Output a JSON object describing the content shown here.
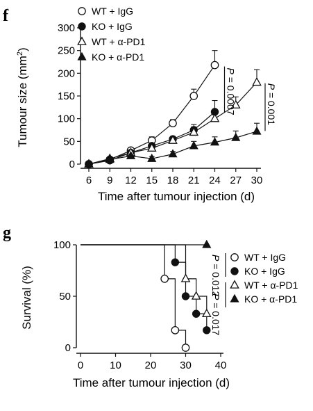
{
  "panels": {
    "f": "f",
    "g": "g"
  },
  "chart_data": [
    {
      "type": "line",
      "panel": "f",
      "xlabel": "Time after tumour injection (d)",
      "ylabel_main": "Tumour size (mm",
      "ylabel_sup": "2",
      "ylabel_end": ")",
      "x": [
        6,
        9,
        12,
        15,
        18,
        21,
        24,
        27,
        30
      ],
      "xlim": [
        6,
        30
      ],
      "ylim": [
        0,
        300
      ],
      "yticks": [
        0,
        50,
        100,
        150,
        200,
        250,
        300
      ],
      "legend_position": "top-left",
      "series": [
        {
          "name": "WT + IgG",
          "marker": "open-circle",
          "x": [
            6,
            9,
            12,
            15,
            18,
            21,
            24
          ],
          "y": [
            0,
            10,
            30,
            52,
            90,
            150,
            218
          ],
          "err": [
            0,
            3,
            5,
            8,
            8,
            15,
            32
          ]
        },
        {
          "name": "KO + IgG",
          "marker": "filled-circle",
          "x": [
            6,
            9,
            12,
            15,
            18,
            21,
            24
          ],
          "y": [
            0,
            8,
            25,
            40,
            55,
            75,
            115
          ],
          "err": [
            0,
            3,
            5,
            6,
            6,
            12,
            25
          ]
        },
        {
          "name": "WT + α-PD1",
          "marker": "open-triangle",
          "x": [
            6,
            9,
            12,
            15,
            18,
            21,
            24,
            27,
            30
          ],
          "y": [
            0,
            12,
            25,
            35,
            52,
            70,
            100,
            130,
            180
          ],
          "err": [
            0,
            3,
            5,
            8,
            6,
            12,
            20,
            18,
            28
          ]
        },
        {
          "name": "KO + α-PD1",
          "marker": "filled-triangle",
          "x": [
            6,
            9,
            12,
            15,
            18,
            21,
            24,
            27,
            30
          ],
          "y": [
            0,
            10,
            18,
            12,
            22,
            40,
            48,
            58,
            72
          ],
          "err": [
            0,
            3,
            4,
            5,
            6,
            10,
            12,
            15,
            18
          ]
        }
      ],
      "annotations": [
        {
          "label": "P",
          "value": " = 0.0007",
          "between": [
            "WT + IgG",
            "KO + IgG"
          ],
          "at_x": 24
        },
        {
          "label": "P",
          "value": " = 0.001",
          "between": [
            "WT + α-PD1",
            "KO + α-PD1"
          ],
          "at_x": 30
        }
      ]
    },
    {
      "type": "step",
      "panel": "g",
      "xlabel": "Time after tumour injection (d)",
      "ylabel": "Survival (%)",
      "xlim": [
        0,
        40
      ],
      "ylim": [
        0,
        100
      ],
      "xticks": [
        0,
        10,
        20,
        30,
        40
      ],
      "yticks": [
        0,
        50,
        100
      ],
      "legend_position": "right",
      "series": [
        {
          "name": "WT + IgG",
          "marker": "open-circle",
          "steps": [
            [
              0,
              100
            ],
            [
              24,
              100
            ],
            [
              24,
              67
            ],
            [
              27,
              67
            ],
            [
              27,
              17
            ],
            [
              30,
              17
            ],
            [
              30,
              0
            ]
          ],
          "points": [
            [
              24,
              67
            ],
            [
              27,
              17
            ],
            [
              30,
              0
            ]
          ]
        },
        {
          "name": "KO + IgG",
          "marker": "filled-circle",
          "steps": [
            [
              0,
              100
            ],
            [
              27,
              100
            ],
            [
              27,
              83
            ],
            [
              30,
              83
            ],
            [
              30,
              50
            ],
            [
              33,
              50
            ],
            [
              33,
              33
            ],
            [
              36,
              33
            ],
            [
              36,
              17
            ]
          ],
          "points": [
            [
              27,
              83
            ],
            [
              30,
              50
            ],
            [
              33,
              33
            ],
            [
              36,
              17
            ]
          ]
        },
        {
          "name": "WT + α-PD1",
          "marker": "open-triangle",
          "steps": [
            [
              0,
              100
            ],
            [
              30,
              100
            ],
            [
              30,
              67
            ],
            [
              33,
              67
            ],
            [
              33,
              50
            ],
            [
              36,
              50
            ],
            [
              36,
              33
            ]
          ],
          "points": [
            [
              30,
              67
            ],
            [
              33,
              50
            ],
            [
              36,
              33
            ]
          ]
        },
        {
          "name": "KO + α-PD1",
          "marker": "filled-triangle",
          "steps": [
            [
              0,
              100
            ],
            [
              36,
              100
            ]
          ],
          "points": [
            [
              36,
              100
            ]
          ]
        }
      ],
      "annotations": [
        {
          "label": "P",
          "value": " = 0.012",
          "between": [
            "WT + IgG",
            "KO + IgG"
          ]
        },
        {
          "label": "P",
          "value": " = 0.017",
          "between": [
            "WT + α-PD1",
            "KO + α-PD1"
          ]
        }
      ]
    }
  ]
}
